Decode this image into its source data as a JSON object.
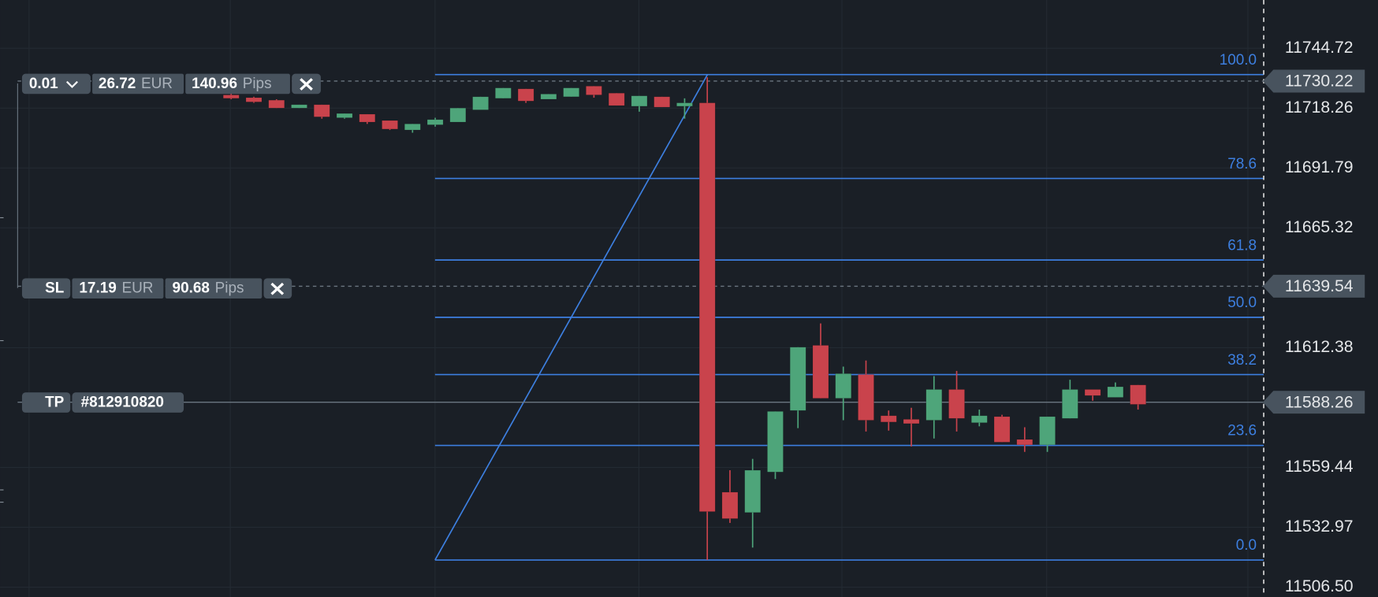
{
  "chart_data": {
    "type": "candlestick",
    "ylim": [
      11502.15,
      11766.07
    ],
    "yticks": [
      {
        "value": 11506.5,
        "label": "11506.50"
      },
      11532.97,
      11559.44,
      11612.38,
      11665.32,
      11691.79,
      11718.26,
      11744.72
    ],
    "grid": true,
    "up_color": "#4ea57a",
    "down_color": "#c9434c",
    "candles": {
      "open": [
        11724.1,
        11722.9,
        11721.8,
        11718.3,
        11719.8,
        11714.0,
        11715.6,
        11712.8,
        11708.6,
        11710.9,
        11712.1,
        11717.5,
        11722.6,
        11726.8,
        11722.2,
        11723.3,
        11728.0,
        11724.9,
        11719.1,
        11723.3,
        11719.1,
        11720.6,
        11548.5,
        11539.5,
        11557.4,
        11584.6,
        11613.4,
        11590.0,
        11600.5,
        11582.3,
        11580.7,
        11580.3,
        11593.9,
        11579.2,
        11581.9,
        11571.8,
        11569.4,
        11581.1,
        11593.9,
        11590.4,
        11595.9
      ],
      "high": [
        11724.9,
        11723.3,
        11722.2,
        11719.8,
        11719.8,
        11715.9,
        11715.6,
        11712.8,
        11711.3,
        11714.0,
        11718.3,
        11723.3,
        11727.2,
        11726.8,
        11724.5,
        11727.2,
        11728.0,
        11724.9,
        11723.7,
        11723.3,
        11722.6,
        11731.9,
        11558.2,
        11563.2,
        11584.2,
        11612.6,
        11623.1,
        11604.0,
        11606.7,
        11584.6,
        11585.8,
        11599.8,
        11602.1,
        11585.0,
        11582.7,
        11577.2,
        11581.9,
        11598.2,
        11593.9,
        11597.0,
        11595.9
      ],
      "low": [
        11722.2,
        11720.6,
        11718.3,
        11718.3,
        11713.6,
        11713.6,
        11711.3,
        11708.6,
        11707.4,
        11710.1,
        11712.1,
        11717.5,
        11722.6,
        11720.6,
        11722.2,
        11723.3,
        11722.9,
        11719.4,
        11716.7,
        11718.7,
        11713.6,
        11518.5,
        11534.9,
        11524.0,
        11554.3,
        11576.8,
        11590.0,
        11580.3,
        11575.3,
        11575.7,
        11568.7,
        11572.2,
        11575.3,
        11577.6,
        11570.6,
        11566.3,
        11566.3,
        11581.1,
        11588.9,
        11590.4,
        11585.0
      ],
      "close": [
        11722.6,
        11721.0,
        11718.3,
        11719.8,
        11714.4,
        11715.9,
        11712.1,
        11709.0,
        11711.3,
        11713.2,
        11718.3,
        11723.3,
        11727.2,
        11721.4,
        11724.5,
        11727.2,
        11724.1,
        11719.4,
        11723.7,
        11718.7,
        11720.6,
        11539.9,
        11536.8,
        11558.2,
        11584.2,
        11612.6,
        11590.0,
        11600.9,
        11580.3,
        11579.5,
        11578.8,
        11593.9,
        11581.1,
        11582.3,
        11570.6,
        11569.4,
        11581.9,
        11593.9,
        11591.2,
        11595.1,
        11587.3
      ]
    },
    "fibonacci": {
      "high": 11733.1,
      "low": 11518.5,
      "color": "#3d7fe0",
      "levels": [
        {
          "value": 100,
          "label": "100.0"
        },
        78.6,
        61.8,
        {
          "value": 50,
          "label": "50.0"
        },
        38.2,
        23.6,
        {
          "value": 0,
          "label": "0.0"
        }
      ]
    },
    "price_lines": [
      {
        "value": 11730.22,
        "style": "dashed"
      },
      {
        "value": 11639.54,
        "style": "dashed"
      },
      {
        "value": 11588.26,
        "style": "solid"
      }
    ]
  },
  "orders": {
    "position": {
      "volume": 0.01,
      "profit": 26.72,
      "currency": "EUR",
      "pips": 140.96,
      "unit": "Pips"
    },
    "sl": {
      "label": "SL",
      "amount": 17.19,
      "currency": "EUR",
      "pips": 90.68,
      "unit": "Pips"
    },
    "tp": {
      "label": "TP",
      "id": "#812910820"
    }
  }
}
